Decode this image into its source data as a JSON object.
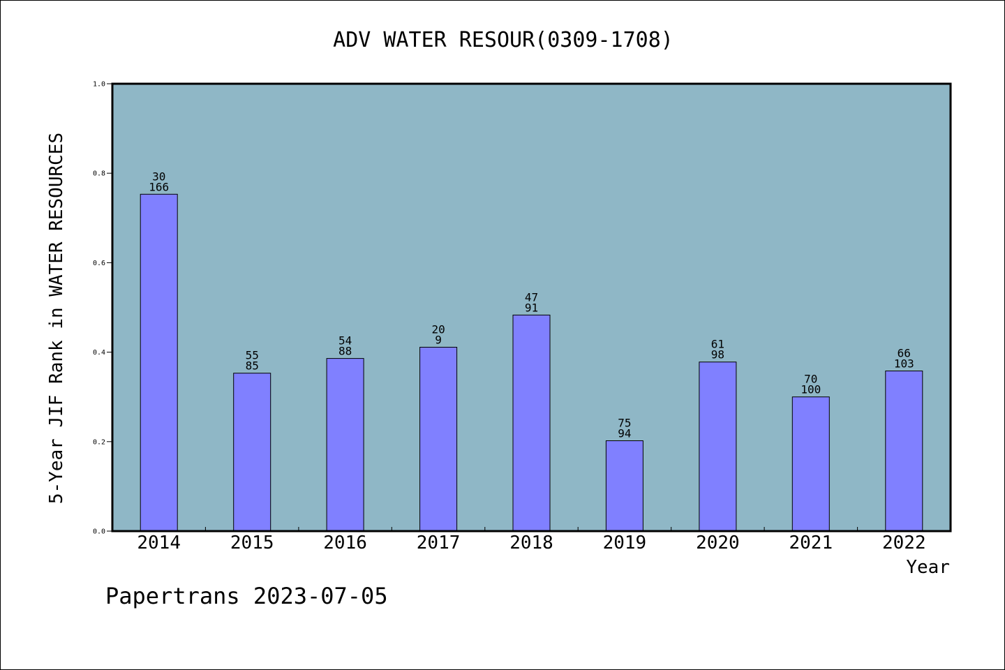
{
  "chart_data": {
    "type": "bar",
    "title": "ADV WATER RESOUR(0309-1708)",
    "xlabel": "Year",
    "ylabel": "5-Year JIF Rank in WATER RESOURCES",
    "ylim": [
      0,
      1.0
    ],
    "yticks": [
      "0.0",
      "0.2",
      "0.4",
      "0.6",
      "0.8",
      "1.0"
    ],
    "grid": false,
    "categories": [
      "2014",
      "2015",
      "2016",
      "2017",
      "2018",
      "2019",
      "2020",
      "2021",
      "2022"
    ],
    "values": [
      0.753,
      0.353,
      0.386,
      0.411,
      0.483,
      0.202,
      0.378,
      0.3,
      0.358
    ],
    "labels_top": [
      "30",
      "55",
      "54",
      "20",
      "47",
      "75",
      "61",
      "70",
      "66"
    ],
    "labels_bottom": [
      "166",
      "85",
      "88",
      "9",
      "91",
      "94",
      "98",
      "100",
      "103"
    ],
    "colors": {
      "plot_background": "#8fb7c6",
      "bar_fill": "#8080ff",
      "bar_edge": "#000000"
    }
  },
  "footer": "Papertrans 2023-07-05"
}
